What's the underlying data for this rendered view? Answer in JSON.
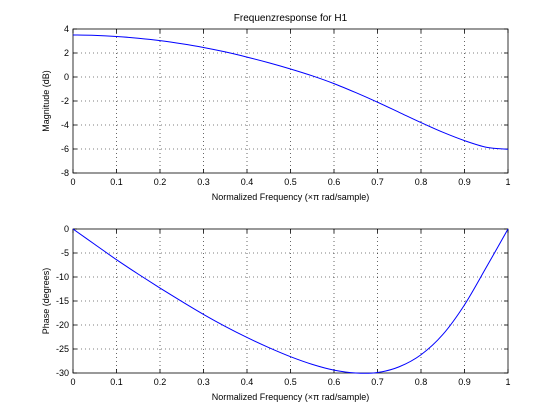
{
  "chart_data": [
    {
      "type": "line",
      "title": "Frequenzresponse for H1",
      "xlabel": "Normalized Frequency  (×π rad/sample)",
      "ylabel": "Magnitude (dB)",
      "xlim": [
        0,
        1
      ],
      "ylim": [
        -8,
        4
      ],
      "xticks": [
        0,
        0.1,
        0.2,
        0.3,
        0.4,
        0.5,
        0.6,
        0.7,
        0.8,
        0.9,
        1
      ],
      "xtick_labels": [
        "0",
        "0.1",
        "0.2",
        "0.3",
        "0.4",
        "0.5",
        "0.6",
        "0.7",
        "0.8",
        "0.9",
        "1"
      ],
      "yticks": [
        -8,
        -6,
        -4,
        -2,
        0,
        2,
        4
      ],
      "ytick_labels": [
        "-8",
        "-6",
        "-4",
        "-2",
        "0",
        "2",
        "4"
      ],
      "grid": true,
      "line_color": "#0000ff",
      "x": [
        0,
        0.05,
        0.1,
        0.15,
        0.2,
        0.25,
        0.3,
        0.35,
        0.4,
        0.45,
        0.5,
        0.55,
        0.6,
        0.65,
        0.7,
        0.75,
        0.8,
        0.85,
        0.9,
        0.95,
        1
      ],
      "y": [
        3.5,
        3.47,
        3.38,
        3.23,
        3.03,
        2.77,
        2.46,
        2.09,
        1.66,
        1.19,
        0.67,
        0.1,
        -0.55,
        -1.3,
        -2.1,
        -2.95,
        -3.8,
        -4.6,
        -5.3,
        -5.85,
        -6.02
      ]
    },
    {
      "type": "line",
      "title": "",
      "xlabel": "Normalized Frequency  (×π rad/sample)",
      "ylabel": "Phase (degrees)",
      "xlim": [
        0,
        1
      ],
      "ylim": [
        -30,
        0
      ],
      "xticks": [
        0,
        0.1,
        0.2,
        0.3,
        0.4,
        0.5,
        0.6,
        0.7,
        0.8,
        0.9,
        1
      ],
      "xtick_labels": [
        "0",
        "0.1",
        "0.2",
        "0.3",
        "0.4",
        "0.5",
        "0.6",
        "0.7",
        "0.8",
        "0.9",
        "1"
      ],
      "yticks": [
        -30,
        -25,
        -20,
        -15,
        -10,
        -5,
        0
      ],
      "ytick_labels": [
        "-30",
        "-25",
        "-20",
        "-15",
        "-10",
        "-5",
        "0"
      ],
      "grid": true,
      "line_color": "#0000ff",
      "x": [
        0,
        0.05,
        0.1,
        0.15,
        0.2,
        0.25,
        0.3,
        0.35,
        0.4,
        0.45,
        0.5,
        0.55,
        0.6,
        0.65,
        0.7,
        0.75,
        0.8,
        0.85,
        0.9,
        0.95,
        1
      ],
      "y": [
        0,
        -3.2,
        -6.4,
        -9.4,
        -12.3,
        -15.1,
        -17.8,
        -20.3,
        -22.6,
        -24.7,
        -26.6,
        -28.2,
        -29.4,
        -30.0,
        -29.9,
        -28.7,
        -26.2,
        -22.0,
        -15.8,
        -8.0,
        0
      ]
    }
  ]
}
